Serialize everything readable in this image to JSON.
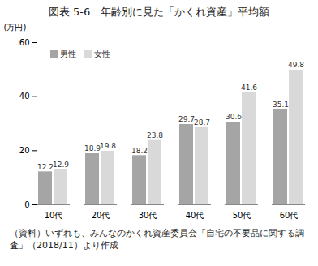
{
  "chart_data": {
    "type": "bar",
    "title": "図表 5-6　年齢別に見た「かくれ資産」平均額",
    "y_label": "(万円)",
    "caption": "（資料）いずれも、みんなのかくれ資産委員会「自宅の不要品に関する調査」（2018/11）より作成",
    "categories": [
      "10代",
      "20代",
      "30代",
      "40代",
      "50代",
      "60代"
    ],
    "series": [
      {
        "name": "男性",
        "color": "#a5a5a5",
        "values": [
          12.2,
          18.9,
          18.2,
          29.7,
          30.6,
          35.1
        ]
      },
      {
        "name": "女性",
        "color": "#d9d9d9",
        "values": [
          12.9,
          19.8,
          23.8,
          28.7,
          41.6,
          49.8
        ]
      }
    ],
    "ylim": [
      0,
      60
    ],
    "yticks": [
      0,
      20,
      40,
      60
    ],
    "grid": false,
    "legend": "top-left",
    "data_labels": true
  }
}
